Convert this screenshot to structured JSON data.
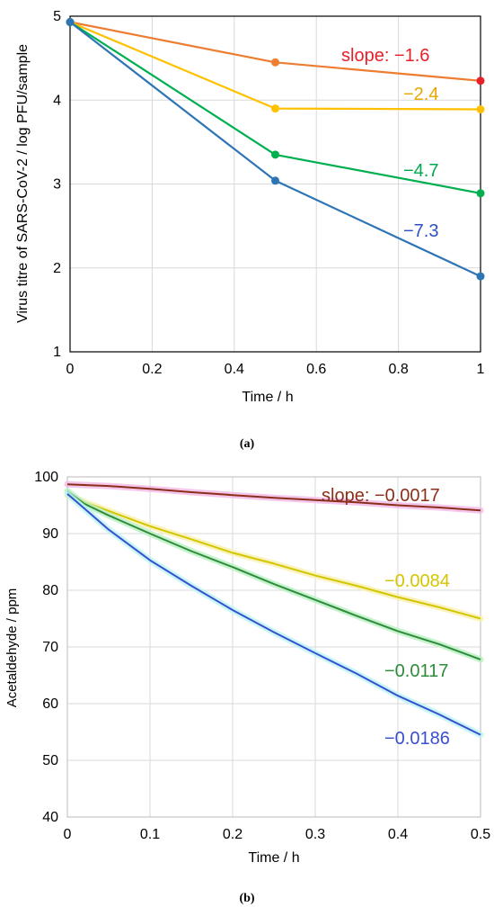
{
  "chart_data": [
    {
      "type": "line",
      "panel_label": "(a)",
      "xlabel": "Time / h",
      "ylabel": "Virus titre of SARS-CoV-2 / log PFU/sample",
      "xlim": [
        0,
        1
      ],
      "ylim": [
        1,
        5
      ],
      "xticks": [
        "0",
        "0.2",
        "0.4",
        "0.6",
        "0.8",
        "1"
      ],
      "yticks": [
        "1",
        "2",
        "3",
        "4",
        "5"
      ],
      "grid": true,
      "series": [
        {
          "color": "#ed7d31",
          "x": [
            0,
            0.5,
            1
          ],
          "y": [
            4.93,
            4.45,
            4.23
          ],
          "end_marker_color": "#e8202a"
        },
        {
          "color": "#ffc000",
          "x": [
            0,
            0.5,
            1
          ],
          "y": [
            4.93,
            3.9,
            3.89
          ]
        },
        {
          "color": "#00b050",
          "x": [
            0,
            0.5,
            1
          ],
          "y": [
            4.93,
            3.35,
            2.89
          ]
        },
        {
          "color": "#2e75b6",
          "x": [
            0,
            0.5,
            1
          ],
          "y": [
            4.93,
            3.04,
            1.9
          ]
        }
      ],
      "annotations": [
        {
          "text": "slope: −1.6",
          "color": "#e8202a"
        },
        {
          "text": "−2.4",
          "color": "#e6a800"
        },
        {
          "text": "−4.7",
          "color": "#00a84f"
        },
        {
          "text": "−7.3",
          "color": "#2e4fc8"
        }
      ]
    },
    {
      "type": "line",
      "panel_label": "(b)",
      "xlabel": "Time / h",
      "ylabel": "Acetaldehyde / ppm",
      "xlim": [
        0,
        0.5
      ],
      "ylim": [
        40,
        100
      ],
      "xticks": [
        "0",
        "0.1",
        "0.2",
        "0.3",
        "0.4",
        "0.5"
      ],
      "yticks": [
        "40",
        "50",
        "60",
        "70",
        "80",
        "90",
        "100"
      ],
      "grid": true,
      "series": [
        {
          "color": "#8b2e1a",
          "halo": "#f2b8e6",
          "x": [
            0,
            0.05,
            0.1,
            0.15,
            0.2,
            0.25,
            0.3,
            0.35,
            0.4,
            0.45,
            0.5
          ],
          "y": [
            98.7,
            98.4,
            97.9,
            97.3,
            96.8,
            96.3,
            95.9,
            95.5,
            95.0,
            94.6,
            94.1
          ]
        },
        {
          "color": "#d4c500",
          "halo": "#f7f0b0",
          "x": [
            0,
            0.05,
            0.1,
            0.15,
            0.2,
            0.25,
            0.3,
            0.35,
            0.4,
            0.45,
            0.5
          ],
          "y": [
            96.7,
            94.0,
            91.3,
            89.0,
            86.6,
            84.7,
            82.6,
            80.8,
            78.8,
            77.0,
            75.0
          ]
        },
        {
          "color": "#2e8b3a",
          "halo": "#b8f0c0",
          "x": [
            0,
            0.02,
            0.05,
            0.1,
            0.15,
            0.2,
            0.25,
            0.3,
            0.35,
            0.4,
            0.45,
            0.5
          ],
          "y": [
            97.5,
            95.3,
            93.2,
            90.0,
            86.9,
            84.1,
            81.1,
            78.3,
            75.5,
            72.8,
            70.5,
            67.8
          ]
        },
        {
          "color": "#3a4fd0",
          "halo": "#b8f4f4",
          "x": [
            0,
            0.02,
            0.05,
            0.1,
            0.15,
            0.2,
            0.25,
            0.3,
            0.35,
            0.4,
            0.45,
            0.5
          ],
          "y": [
            97.0,
            94.5,
            90.7,
            85.3,
            80.8,
            76.5,
            72.6,
            68.9,
            65.3,
            61.4,
            58.1,
            54.5
          ]
        }
      ],
      "annotations": [
        {
          "text": "slope: −0.0017",
          "color": "#8b2e1a"
        },
        {
          "text": "−0.0084",
          "color": "#d4c500"
        },
        {
          "text": "−0.0117",
          "color": "#2e8b3a"
        },
        {
          "text": "−0.0186",
          "color": "#3a4fd0"
        }
      ]
    }
  ]
}
